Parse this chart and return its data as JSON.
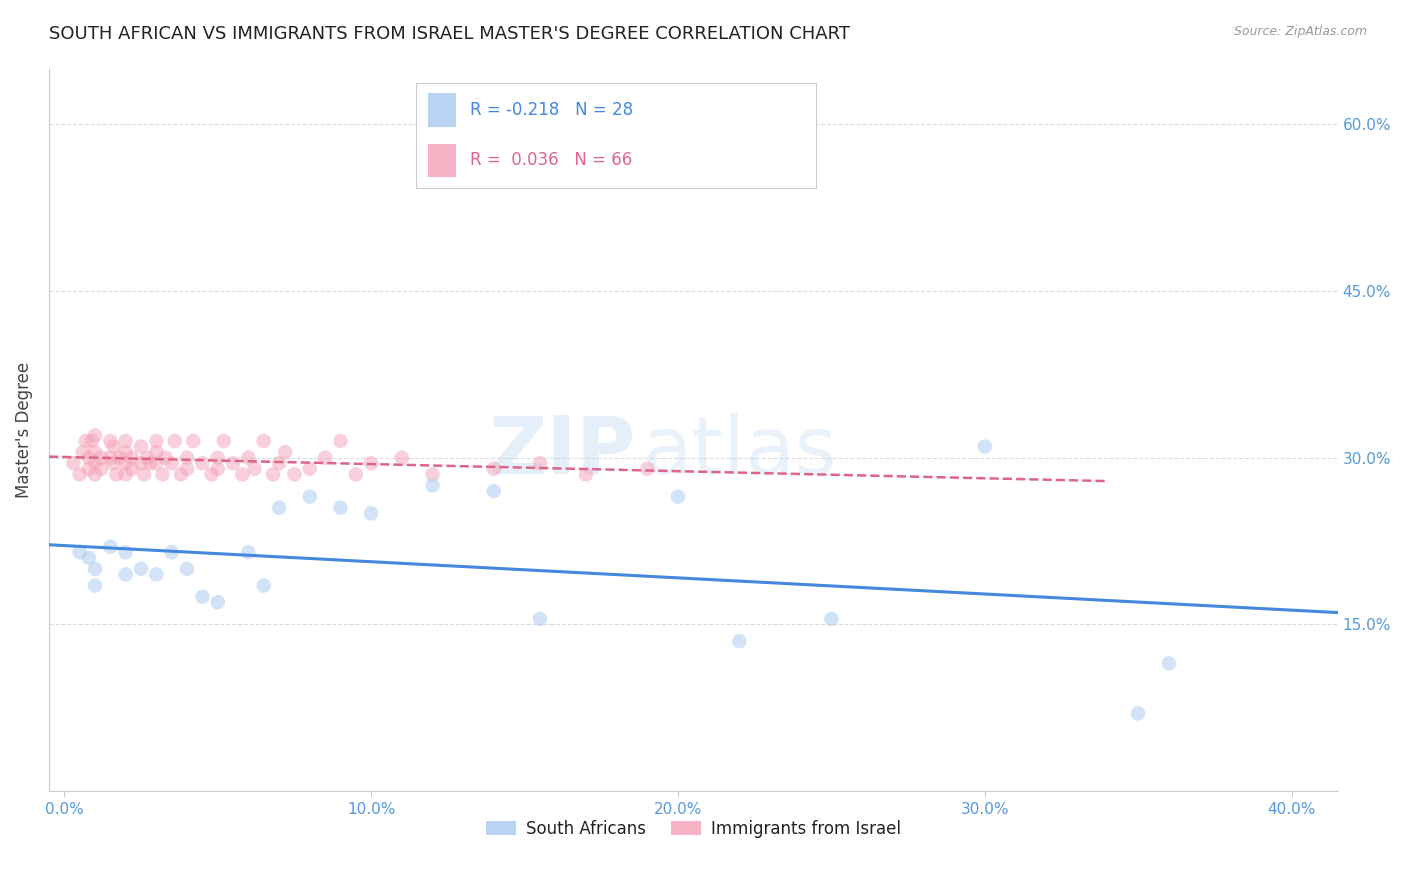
{
  "title": "SOUTH AFRICAN VS IMMIGRANTS FROM ISRAEL MASTER'S DEGREE CORRELATION CHART",
  "source": "Source: ZipAtlas.com",
  "xlabel_ticks": [
    "0.0%",
    "10.0%",
    "20.0%",
    "30.0%",
    "40.0%"
  ],
  "xlabel_vals": [
    0.0,
    0.1,
    0.2,
    0.3,
    0.4
  ],
  "ylabel_right_ticks": [
    "15.0%",
    "30.0%",
    "45.0%",
    "60.0%"
  ],
  "ylabel_right_vals": [
    0.15,
    0.3,
    0.45,
    0.6
  ],
  "ylabel_label": "Master's Degree",
  "blue_R": -0.218,
  "blue_N": 28,
  "pink_R": 0.036,
  "pink_N": 66,
  "blue_color": "#A8C8F0",
  "pink_color": "#F4A0B8",
  "blue_line_color": "#4488DD",
  "pink_line_color": "#DD6688",
  "legend_blue_label": "South Africans",
  "legend_pink_label": "Immigrants from Israel",
  "watermark_zip": "ZIP",
  "watermark_atlas": "atlas",
  "blue_scatter_x": [
    0.005,
    0.008,
    0.01,
    0.01,
    0.015,
    0.02,
    0.02,
    0.025,
    0.03,
    0.035,
    0.04,
    0.045,
    0.05,
    0.06,
    0.065,
    0.07,
    0.08,
    0.09,
    0.1,
    0.12,
    0.14,
    0.155,
    0.2,
    0.22,
    0.25,
    0.3,
    0.35,
    0.36
  ],
  "blue_scatter_y": [
    0.215,
    0.21,
    0.2,
    0.185,
    0.22,
    0.215,
    0.195,
    0.2,
    0.195,
    0.215,
    0.2,
    0.175,
    0.17,
    0.215,
    0.185,
    0.255,
    0.265,
    0.255,
    0.25,
    0.275,
    0.27,
    0.155,
    0.265,
    0.135,
    0.155,
    0.31,
    0.07,
    0.115
  ],
  "pink_scatter_x": [
    0.003,
    0.005,
    0.006,
    0.007,
    0.008,
    0.008,
    0.009,
    0.01,
    0.01,
    0.01,
    0.01,
    0.012,
    0.012,
    0.015,
    0.015,
    0.016,
    0.016,
    0.017,
    0.018,
    0.02,
    0.02,
    0.02,
    0.02,
    0.022,
    0.022,
    0.025,
    0.025,
    0.026,
    0.027,
    0.028,
    0.03,
    0.03,
    0.03,
    0.032,
    0.033,
    0.035,
    0.036,
    0.038,
    0.04,
    0.04,
    0.042,
    0.045,
    0.048,
    0.05,
    0.05,
    0.052,
    0.055,
    0.058,
    0.06,
    0.062,
    0.065,
    0.068,
    0.07,
    0.072,
    0.075,
    0.08,
    0.085,
    0.09,
    0.095,
    0.1,
    0.11,
    0.12,
    0.14,
    0.155,
    0.17,
    0.19
  ],
  "pink_scatter_y": [
    0.295,
    0.285,
    0.305,
    0.315,
    0.3,
    0.29,
    0.315,
    0.285,
    0.295,
    0.305,
    0.32,
    0.29,
    0.3,
    0.3,
    0.315,
    0.295,
    0.31,
    0.285,
    0.3,
    0.295,
    0.305,
    0.315,
    0.285,
    0.3,
    0.29,
    0.295,
    0.31,
    0.285,
    0.3,
    0.295,
    0.295,
    0.305,
    0.315,
    0.285,
    0.3,
    0.295,
    0.315,
    0.285,
    0.3,
    0.29,
    0.315,
    0.295,
    0.285,
    0.3,
    0.29,
    0.315,
    0.295,
    0.285,
    0.3,
    0.29,
    0.315,
    0.285,
    0.295,
    0.305,
    0.285,
    0.29,
    0.3,
    0.315,
    0.285,
    0.295,
    0.3,
    0.285,
    0.29,
    0.295,
    0.285,
    0.29
  ],
  "background_color": "#FFFFFF",
  "grid_color": "#DDDDDD",
  "axis_tick_color": "#5599DD",
  "title_color": "#222222",
  "ylabel_color": "#444444",
  "title_fontsize": 13,
  "axis_fontsize": 11,
  "legend_fontsize": 12,
  "marker_size": 110,
  "marker_alpha": 0.5,
  "xmin": -0.005,
  "xmax": 0.415,
  "ymin": 0.0,
  "ymax": 0.65
}
